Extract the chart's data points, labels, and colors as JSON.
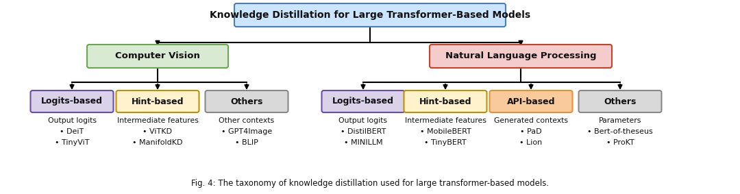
{
  "title": "Knowledge Distillation for Large Transformer-Based Models",
  "title_box_color": "#cce5ff",
  "title_box_edge": "#4a7fb5",
  "cv_label": "Computer Vision",
  "cv_box_color": "#d9ead3",
  "cv_box_edge": "#6aa84f",
  "nlp_label": "Natural Language Processing",
  "nlp_box_color": "#f4cccc",
  "nlp_box_edge": "#cc4125",
  "cv_children": [
    {
      "label": "Logits-based",
      "color": "#d9d2e9",
      "edge": "#674ea7"
    },
    {
      "label": "Hint-based",
      "color": "#fff2cc",
      "edge": "#bf9000"
    },
    {
      "label": "Others",
      "color": "#d9d9d9",
      "edge": "#888888"
    }
  ],
  "nlp_children": [
    {
      "label": "Logits-based",
      "color": "#d9d2e9",
      "edge": "#674ea7"
    },
    {
      "label": "Hint-based",
      "color": "#fff2cc",
      "edge": "#bf9000"
    },
    {
      "label": "API-based",
      "color": "#f9cb9c",
      "edge": "#e69138"
    },
    {
      "label": "Others",
      "color": "#d9d9d9",
      "edge": "#888888"
    }
  ],
  "cv_leaf_texts": [
    [
      "Output logits",
      "• DeiT",
      "• TinyViT"
    ],
    [
      "Intermediate features",
      "• ViTKD",
      "• ManifoldKD"
    ],
    [
      "Other contexts",
      "• GPT4Image",
      "• BLIP"
    ]
  ],
  "nlp_leaf_texts": [
    [
      "Output logits",
      "• DistilBERT",
      "• MINILLM"
    ],
    [
      "Intermediate features",
      "• MobileBERT",
      "• TinyBERT"
    ],
    [
      "Generated contexts",
      "• PaD",
      "• Lion"
    ],
    [
      "Parameters",
      "• Bert-of-theseus",
      "• ProKT"
    ]
  ],
  "caption": "Fig. 4: The taxonomy of knowledge distillation used for large transformer-based models.",
  "bg_color": "#ffffff"
}
